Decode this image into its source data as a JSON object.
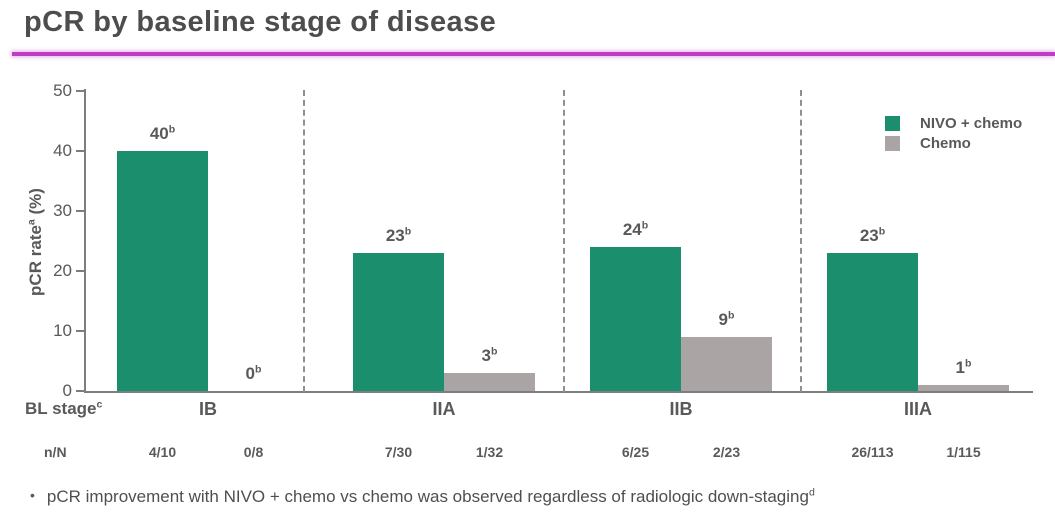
{
  "title": "pCR by baseline stage of disease",
  "ylabel": {
    "text": "pCR rate",
    "sup": "a",
    "suffix": " (%)"
  },
  "x_axis": {
    "label": "BL stage",
    "sup": "c"
  },
  "counts_row_label": "n/N",
  "footnote": {
    "bullet": "•",
    "text": "pCR improvement with NIVO + chemo vs chemo was observed regardless of radiologic down-staging",
    "sup": "d"
  },
  "colors": {
    "accent_rule": "#bd3ec5",
    "nivo_chemo_green": "#1b8e6d",
    "chemo_gray": "#aba4a4",
    "text_gray": "#595959",
    "axis_gray": "#7d7d7d"
  },
  "chart_data": {
    "type": "bar",
    "title": "pCR by baseline stage of disease",
    "categories": [
      "IB",
      "IIA",
      "IIB",
      "IIIA"
    ],
    "series": [
      {
        "name": "NIVO + chemo",
        "color": "#1b8e6d",
        "values": [
          40,
          23,
          24,
          23
        ],
        "counts": [
          "4/10",
          "7/30",
          "6/25",
          "26/113"
        ]
      },
      {
        "name": "Chemo",
        "color": "#aba4a4",
        "values": [
          0,
          3,
          9,
          1
        ],
        "counts": [
          "0/8",
          "1/32",
          "2/23",
          "1/115"
        ]
      }
    ],
    "value_label_superscript": "b",
    "ylabel": "pCR rate (%)",
    "xlabel": "BL stage",
    "yticks": [
      0,
      10,
      20,
      30,
      40,
      50
    ],
    "ylim": [
      0,
      50
    ],
    "grid": false,
    "legend_position": "top-right",
    "group_separators": "dashed"
  }
}
